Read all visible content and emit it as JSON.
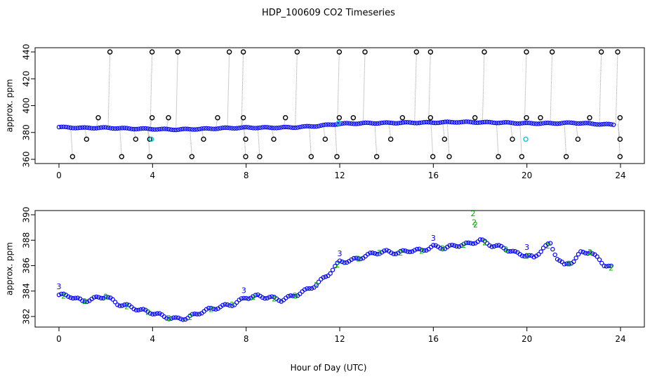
{
  "title": "HDP_100609  CO2 Timeseries",
  "xlabel": "Hour of Day (UTC)",
  "colors": {
    "outlier": "#000000",
    "series_blue": "#0000ff",
    "series_green": "#00b000",
    "series_cyan": "#00cccc",
    "drop_line": "#999999",
    "axis": "#000000"
  },
  "chart_data": [
    {
      "type": "scatter",
      "panel": "top",
      "ylabel": "approx. ppm",
      "xlim": [
        0,
        24
      ],
      "ylim": [
        360,
        440
      ],
      "xticks": [
        "0",
        "4",
        "8",
        "12",
        "16",
        "20",
        "24"
      ],
      "yticks": [
        "360",
        "380",
        "400",
        "420",
        "440"
      ],
      "outliers_high_hours": [
        2.1,
        3.9,
        5.0,
        7.2,
        7.8,
        10.1,
        11.9,
        13.0,
        15.2,
        15.8,
        18.1,
        19.9,
        21.0,
        23.1,
        23.8
      ],
      "outliers_low_hours": [
        0.5,
        2.6,
        3.8,
        5.6,
        7.9,
        8.5,
        10.7,
        11.8,
        13.5,
        15.9,
        16.6,
        18.7,
        19.7,
        21.6,
        23.9
      ],
      "outliers_392_hours": [
        1.6,
        3.9,
        4.6,
        6.7,
        7.8,
        9.6,
        11.9,
        12.5,
        14.6,
        15.8,
        17.7,
        19.9,
        20.5,
        22.6,
        23.9
      ],
      "outliers_375_hours": [
        1.1,
        3.2,
        3.8,
        6.1,
        7.9,
        9.1,
        11.3,
        14.1,
        16.4,
        19.3,
        22.1,
        23.9
      ],
      "cyan_points": [
        [
          3.95,
          375
        ],
        [
          11.95,
          387
        ],
        [
          19.95,
          375
        ]
      ],
      "series_hourly": {
        "name": "",
        "x": [
          0,
          1,
          2,
          3,
          4,
          5,
          6,
          7,
          8,
          9,
          10,
          11,
          12,
          13,
          14,
          15,
          16,
          17,
          18,
          19,
          20,
          21,
          22,
          23,
          24
        ],
        "y": [
          384,
          383.4,
          383.5,
          382.9,
          382.6,
          382.2,
          382.6,
          383.2,
          383.6,
          383.6,
          383.8,
          384.8,
          386.5,
          386.9,
          387.1,
          387.3,
          387.4,
          387.8,
          387.6,
          387.3,
          386.8,
          386.8,
          387.2,
          386.3,
          385.6
        ]
      }
    },
    {
      "type": "scatter",
      "panel": "bottom",
      "ylabel": "approx. ppm",
      "xlim": [
        0,
        24
      ],
      "ylim": [
        381.5,
        390
      ],
      "xticks": [
        "0",
        "4",
        "8",
        "12",
        "16",
        "20",
        "24"
      ],
      "yticks": [
        "382",
        "384",
        "386",
        "388",
        "390"
      ],
      "series": [
        {
          "name": "3",
          "x": [
            0,
            0.5,
            1,
            1.5,
            2,
            2.5,
            3,
            3.5,
            4,
            4.5,
            5,
            5.5,
            6,
            6.5,
            7,
            7.5,
            8,
            8.5,
            9,
            9.5,
            10,
            10.5,
            11,
            11.5,
            12,
            12.5,
            13,
            13.5,
            14,
            14.5,
            15,
            15.5,
            16,
            16.5,
            17,
            17.5,
            18,
            18.5,
            19,
            19.5,
            20,
            20.3,
            20.7,
            21,
            21.3,
            21.6,
            22,
            22.3,
            22.7,
            23,
            23.3,
            23.7
          ],
          "y": [
            383.7,
            383.6,
            383.2,
            383.4,
            383.6,
            383.0,
            382.8,
            382.5,
            382.3,
            382.0,
            381.8,
            381.9,
            382.3,
            382.6,
            382.8,
            383.0,
            383.5,
            383.6,
            383.5,
            383.3,
            383.6,
            384.0,
            384.5,
            385.3,
            386.3,
            386.4,
            386.7,
            387.0,
            387.1,
            387.0,
            387.2,
            387.2,
            387.5,
            387.4,
            387.6,
            387.7,
            388.0,
            387.6,
            387.4,
            387.0,
            386.8,
            386.6,
            387.4,
            387.7,
            386.6,
            386.0,
            386.4,
            387.0,
            387.1,
            386.6,
            386.1,
            385.8
          ]
        },
        {
          "name": "2",
          "x": [
            17.7,
            17.75,
            17.8
          ],
          "y": [
            389.9,
            389.2,
            389.0
          ]
        }
      ]
    }
  ]
}
